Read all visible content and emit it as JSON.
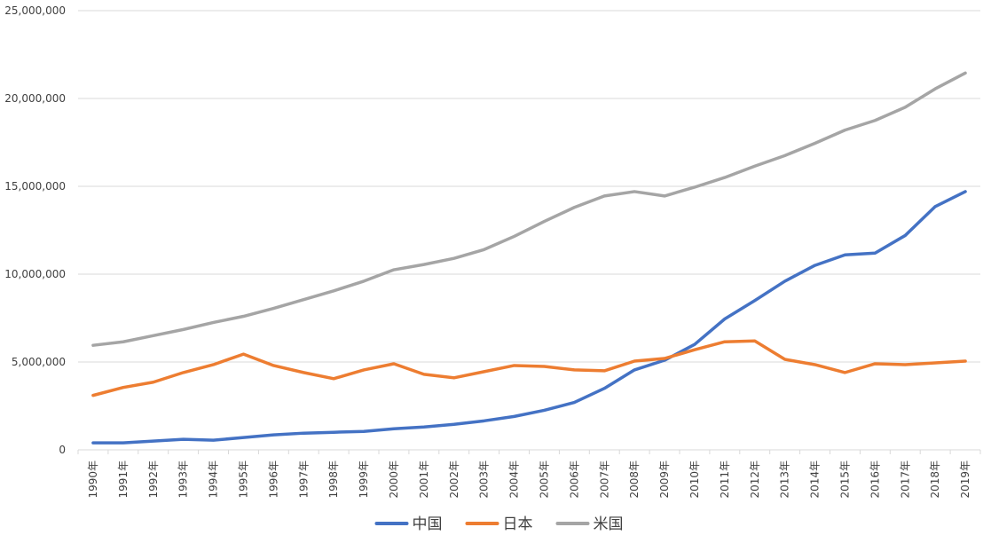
{
  "chart_data": {
    "type": "line",
    "title": "",
    "xlabel": "",
    "ylabel": "",
    "ylim": [
      0,
      25000000
    ],
    "yticks": [
      "0",
      "5,000,000",
      "10,000,000",
      "15,000,000",
      "20,000,000",
      "25,000,000"
    ],
    "grid": true,
    "legend_position": "bottom-center",
    "categories": [
      "1990年",
      "1991年",
      "1992年",
      "1993年",
      "1994年",
      "1995年",
      "1996年",
      "1997年",
      "1998年",
      "1999年",
      "2000年",
      "2001年",
      "2002年",
      "2003年",
      "2004年",
      "2005年",
      "2006年",
      "2007年",
      "2008年",
      "2009年",
      "2010年",
      "2011年",
      "2012年",
      "2013年",
      "2014年",
      "2015年",
      "2016年",
      "2017年",
      "2018年",
      "2019年"
    ],
    "series": [
      {
        "name": "中国",
        "color": "#4472C4",
        "values": [
          400000,
          400000,
          500000,
          600000,
          550000,
          700000,
          850000,
          950000,
          1000000,
          1050000,
          1200000,
          1300000,
          1450000,
          1650000,
          1900000,
          2250000,
          2700000,
          3500000,
          4550000,
          5100000,
          6000000,
          7450000,
          8500000,
          9600000,
          10500000,
          11100000,
          11200000,
          12200000,
          13850000,
          14700000
        ]
      },
      {
        "name": "日本",
        "color": "#ED7D31",
        "values": [
          3100000,
          3550000,
          3850000,
          4400000,
          4850000,
          5450000,
          4800000,
          4400000,
          4050000,
          4550000,
          4900000,
          4300000,
          4100000,
          4450000,
          4800000,
          4750000,
          4550000,
          4500000,
          5050000,
          5200000,
          5700000,
          6150000,
          6200000,
          5150000,
          4850000,
          4400000,
          4900000,
          4850000,
          4950000,
          5050000
        ]
      },
      {
        "name": "米国",
        "color": "#A5A5A5",
        "values": [
          5950000,
          6150000,
          6500000,
          6850000,
          7250000,
          7600000,
          8050000,
          8550000,
          9050000,
          9600000,
          10250000,
          10550000,
          10900000,
          11400000,
          12150000,
          13000000,
          13800000,
          14450000,
          14700000,
          14450000,
          14950000,
          15500000,
          16150000,
          16750000,
          17450000,
          18200000,
          18750000,
          19500000,
          20550000,
          21450000
        ]
      }
    ]
  }
}
